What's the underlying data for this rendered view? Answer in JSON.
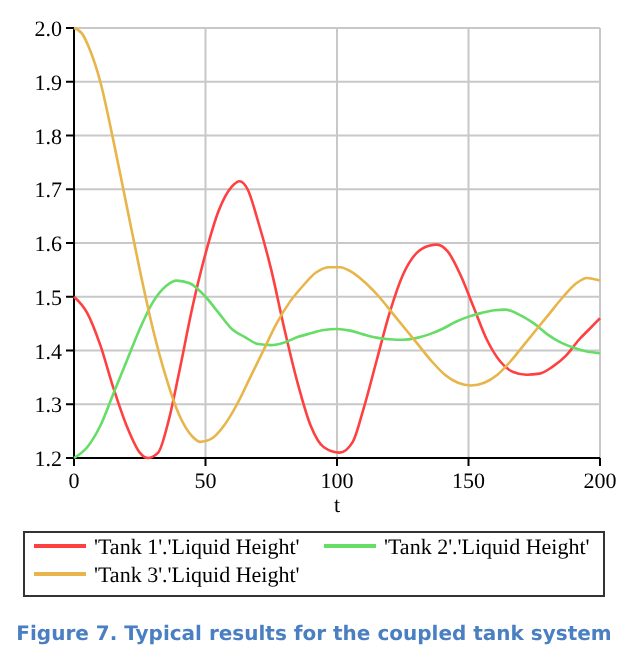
{
  "chart_data": {
    "type": "line",
    "xlabel": "t",
    "xlim": [
      0,
      200
    ],
    "ylim": [
      1.2,
      2.0
    ],
    "xticks": [
      0,
      50,
      100,
      150,
      200
    ],
    "yticks": [
      1.2,
      1.3,
      1.4,
      1.5,
      1.6,
      1.7,
      1.8,
      1.9,
      {
        "value": 2,
        "label": "2.0"
      }
    ],
    "grid": true,
    "legend": "bottom",
    "line_style": "solid",
    "marker": "none",
    "annotations": [
      "Figure 7. Typical results for the coupled tank system"
    ],
    "series": [
      {
        "name": "'Tank 1'.'Liquid Height'",
        "color": "#ff4040",
        "x": [
          0,
          5,
          10,
          15,
          20,
          25,
          28,
          32,
          36,
          40,
          45,
          50,
          55,
          60,
          63,
          66,
          70,
          75,
          80,
          85,
          90,
          95,
          101,
          106,
          110,
          115,
          120,
          125,
          130,
          135,
          138,
          142,
          147,
          152,
          157,
          162,
          167,
          172,
          177,
          182,
          187,
          192,
          196,
          200
        ],
        "values": [
          1.5,
          1.47,
          1.41,
          1.33,
          1.26,
          1.21,
          1.2,
          1.21,
          1.27,
          1.36,
          1.48,
          1.58,
          1.66,
          1.705,
          1.715,
          1.7,
          1.64,
          1.55,
          1.44,
          1.34,
          1.26,
          1.22,
          1.21,
          1.23,
          1.29,
          1.38,
          1.47,
          1.54,
          1.58,
          1.595,
          1.597,
          1.585,
          1.54,
          1.48,
          1.42,
          1.38,
          1.36,
          1.355,
          1.357,
          1.37,
          1.39,
          1.42,
          1.44,
          1.46
        ]
      },
      {
        "name": "'Tank 2'.'Liquid Height'",
        "color": "#66dd66",
        "x": [
          0,
          5,
          10,
          15,
          20,
          25,
          30,
          35,
          39,
          44,
          50,
          55,
          60,
          65,
          70,
          75,
          80,
          85,
          90,
          95,
          100,
          105,
          110,
          115,
          120,
          125,
          130,
          135,
          140,
          145,
          150,
          155,
          160,
          164,
          170,
          175,
          180,
          185,
          190,
          195,
          200
        ],
        "values": [
          1.2,
          1.22,
          1.26,
          1.32,
          1.38,
          1.44,
          1.49,
          1.52,
          1.53,
          1.525,
          1.5,
          1.47,
          1.44,
          1.425,
          1.412,
          1.41,
          1.415,
          1.425,
          1.432,
          1.438,
          1.44,
          1.437,
          1.43,
          1.424,
          1.421,
          1.42,
          1.423,
          1.43,
          1.44,
          1.453,
          1.463,
          1.47,
          1.475,
          1.476,
          1.465,
          1.45,
          1.43,
          1.415,
          1.405,
          1.398,
          1.395
        ]
      },
      {
        "name": "'Tank 3'.'Liquid Height'",
        "color": "#e8b54a",
        "x": [
          0,
          3,
          6,
          10,
          15,
          20,
          25,
          30,
          35,
          40,
          45,
          48,
          52,
          57,
          62,
          67,
          72,
          77,
          82,
          87,
          92,
          97,
          101,
          106,
          111,
          116,
          121,
          126,
          131,
          136,
          141,
          146,
          151,
          156,
          161,
          166,
          171,
          176,
          181,
          186,
          191,
          195,
          200
        ],
        "values": [
          2.0,
          1.99,
          1.96,
          1.9,
          1.79,
          1.67,
          1.55,
          1.44,
          1.35,
          1.28,
          1.24,
          1.23,
          1.235,
          1.26,
          1.3,
          1.35,
          1.4,
          1.45,
          1.49,
          1.52,
          1.545,
          1.555,
          1.555,
          1.545,
          1.525,
          1.5,
          1.47,
          1.44,
          1.41,
          1.38,
          1.355,
          1.34,
          1.335,
          1.34,
          1.355,
          1.38,
          1.41,
          1.44,
          1.47,
          1.5,
          1.525,
          1.535,
          1.53
        ]
      }
    ]
  }
}
